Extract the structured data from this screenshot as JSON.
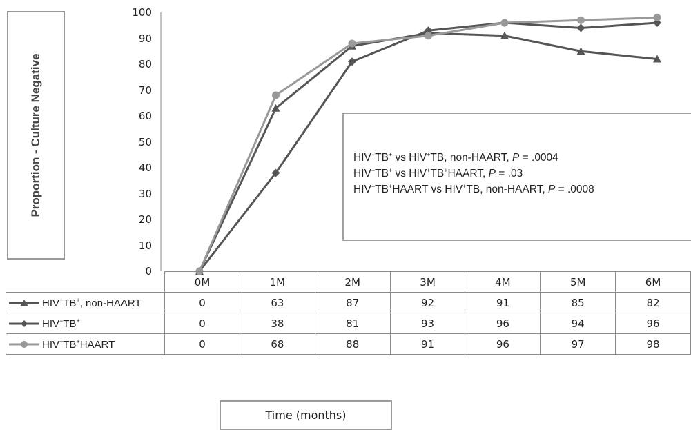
{
  "chart_data": {
    "type": "line",
    "categories": [
      "0M",
      "1M",
      "2M",
      "3M",
      "4M",
      "5M",
      "6M"
    ],
    "ylabel": "Proportion - Culture Negative",
    "xlabel": "Time (months)",
    "ylim": [
      0,
      100
    ],
    "yticks": [
      0,
      10,
      20,
      30,
      40,
      50,
      60,
      70,
      80,
      90,
      100
    ],
    "grid": false,
    "legend": "data-table",
    "series": [
      {
        "name_parts": [
          "HIV",
          "+",
          "TB",
          "+",
          ", non-HAART"
        ],
        "marker": "triangle",
        "color": "#555555",
        "values": [
          0,
          63,
          87,
          92,
          91,
          85,
          82
        ]
      },
      {
        "name_parts": [
          "HIV",
          "−",
          "TB",
          "+",
          ""
        ],
        "marker": "diamond",
        "color": "#555555",
        "values": [
          0,
          38,
          81,
          93,
          96,
          94,
          96
        ]
      },
      {
        "name_parts": [
          "HIV",
          "+",
          "TB",
          "+",
          "HAART"
        ],
        "marker": "circle",
        "color": "#9a9a9a",
        "values": [
          0,
          68,
          88,
          91,
          96,
          97,
          98
        ]
      }
    ],
    "annotations": [
      {
        "t1": "HIV",
        "s1": "−",
        "t2": "TB",
        "s2": "+",
        "t3": " vs HIV",
        "s3": "+",
        "t4": "TB, non-HAART, ",
        "p": "P",
        "t5": " = .0004"
      },
      {
        "t1": "HIV",
        "s1": "−",
        "t2": "TB",
        "s2": "+",
        "t3": " vs HIV",
        "s3": "+",
        "t4": "TB",
        "s4": "+",
        "t4b": "HAART, ",
        "p": "P",
        "t5": " = .03"
      },
      {
        "t1": "HIV",
        "s1": "−",
        "t2": "TB",
        "s2": "+",
        "t3": "HAART vs HIV",
        "s3": "+",
        "t4": "TB, non-HAART, ",
        "p": "P",
        "t5": " = .0008"
      }
    ]
  }
}
